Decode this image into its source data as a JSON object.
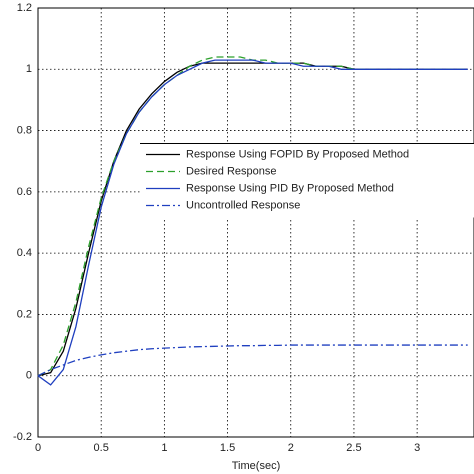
{
  "chart_data": {
    "type": "line",
    "x_label": "Time(sec)",
    "x": [
      0,
      0.1,
      0.2,
      0.3,
      0.4,
      0.5,
      0.6,
      0.7,
      0.8,
      0.9,
      1,
      1.1,
      1.2,
      1.3,
      1.4,
      1.5,
      1.6,
      1.7,
      1.8,
      1.9,
      2,
      2.1,
      2.2,
      2.3,
      2.4,
      2.5,
      2.6,
      2.7,
      2.8,
      2.9,
      3,
      3.1,
      3.2,
      3.3,
      3.4
    ],
    "series": [
      {
        "name": "Response Using FOPID By Proposed Method",
        "color": "#000000",
        "linestyle": "solid",
        "values": [
          0,
          0.01,
          0.08,
          0.22,
          0.4,
          0.57,
          0.7,
          0.8,
          0.87,
          0.92,
          0.96,
          0.99,
          1.01,
          1.02,
          1.02,
          1.02,
          1.02,
          1.02,
          1.02,
          1.02,
          1.02,
          1.02,
          1.01,
          1.01,
          1.01,
          1,
          1,
          1,
          1,
          1,
          1,
          1,
          1,
          1,
          1
        ]
      },
      {
        "name": "Desired Response",
        "color": "#2ca02c",
        "linestyle": "dashed",
        "values": [
          0,
          0.02,
          0.1,
          0.24,
          0.42,
          0.58,
          0.7,
          0.79,
          0.86,
          0.91,
          0.95,
          0.98,
          1.01,
          1.03,
          1.04,
          1.04,
          1.04,
          1.03,
          1.03,
          1.02,
          1.02,
          1.02,
          1.01,
          1.01,
          1.01,
          1,
          1,
          1,
          1,
          1,
          1,
          1,
          1,
          1,
          1
        ]
      },
      {
        "name": "Response Using PID By Proposed Method",
        "color": "#1f3fbf",
        "linestyle": "solid",
        "values": [
          0,
          -0.03,
          0.02,
          0.16,
          0.36,
          0.55,
          0.69,
          0.79,
          0.86,
          0.91,
          0.95,
          0.98,
          1,
          1.02,
          1.03,
          1.03,
          1.03,
          1.03,
          1.02,
          1.02,
          1.02,
          1.01,
          1.01,
          1.01,
          1,
          1,
          1,
          1,
          1,
          1,
          1,
          1,
          1,
          1,
          1
        ]
      },
      {
        "name": "Uncontrolled Response",
        "color": "#2040c0",
        "linestyle": "dashdot",
        "values": [
          0,
          0.02,
          0.035,
          0.05,
          0.06,
          0.068,
          0.075,
          0.08,
          0.085,
          0.088,
          0.09,
          0.092,
          0.094,
          0.095,
          0.096,
          0.097,
          0.098,
          0.098,
          0.099,
          0.099,
          0.1,
          0.1,
          0.1,
          0.1,
          0.1,
          0.1,
          0.1,
          0.1,
          0.1,
          0.1,
          0.1,
          0.1,
          0.1,
          0.1,
          0.1
        ]
      }
    ],
    "xlim": [
      0,
      3.45
    ],
    "xticks": [
      0,
      0.5,
      1,
      1.5,
      2,
      2.5,
      3
    ],
    "ylim": [
      -0.2,
      1.2
    ],
    "yticks": [
      -0.2,
      0,
      0.2,
      0.4,
      0.6,
      0.8,
      1,
      1.2
    ],
    "grid": true,
    "legend": "center right"
  }
}
